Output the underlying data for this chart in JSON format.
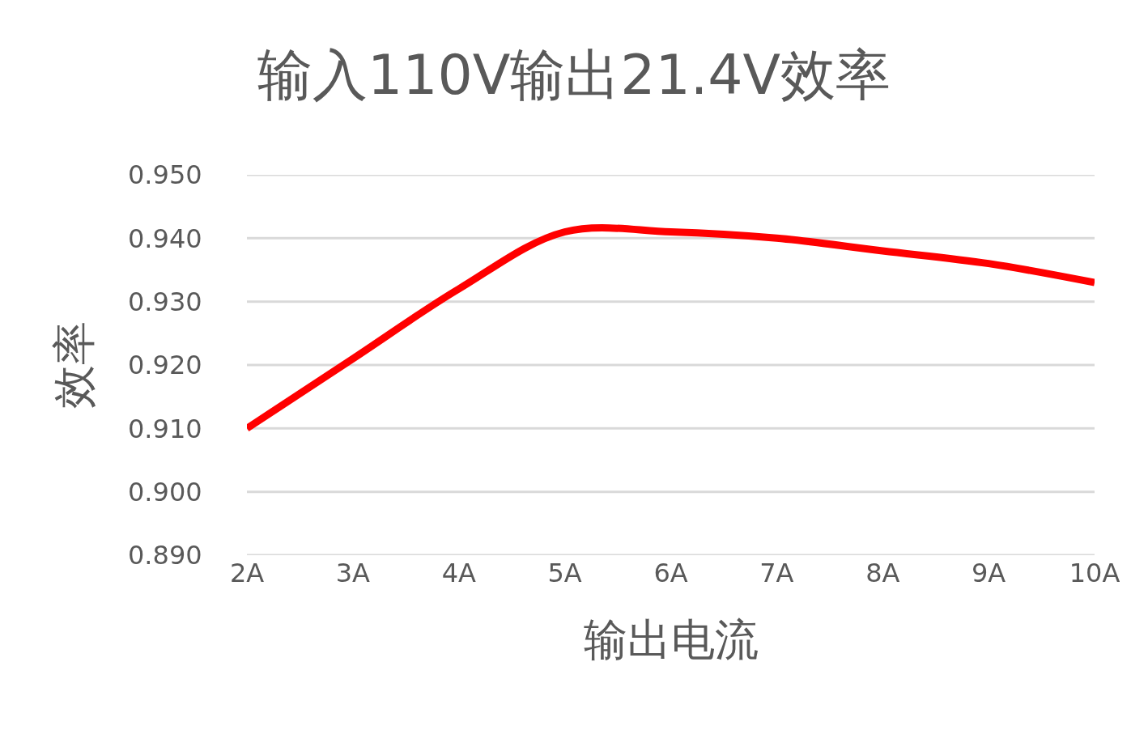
{
  "chart_data": {
    "type": "line",
    "title": "输入110V输出21.4V效率",
    "xlabel": "输出电流",
    "ylabel": "效率",
    "categories": [
      "2A",
      "3A",
      "4A",
      "5A",
      "6A",
      "7A",
      "8A",
      "9A",
      "10A"
    ],
    "series": [
      {
        "color": "#ff0000",
        "values": [
          0.91,
          0.921,
          0.932,
          0.941,
          0.941,
          0.94,
          0.938,
          0.936,
          0.933
        ]
      }
    ],
    "ylim": [
      0.89,
      0.95
    ],
    "yticks": [
      {
        "value": 0.89,
        "label": "0.890"
      },
      {
        "value": 0.9,
        "label": "0.900"
      },
      {
        "value": 0.91,
        "label": "0.910"
      },
      {
        "value": 0.92,
        "label": "0.920"
      },
      {
        "value": 0.93,
        "label": "0.930"
      },
      {
        "value": 0.94,
        "label": "0.940"
      },
      {
        "value": 0.95,
        "label": "0.950"
      }
    ],
    "grid": "y",
    "marker": "none",
    "line_style": "solid"
  }
}
